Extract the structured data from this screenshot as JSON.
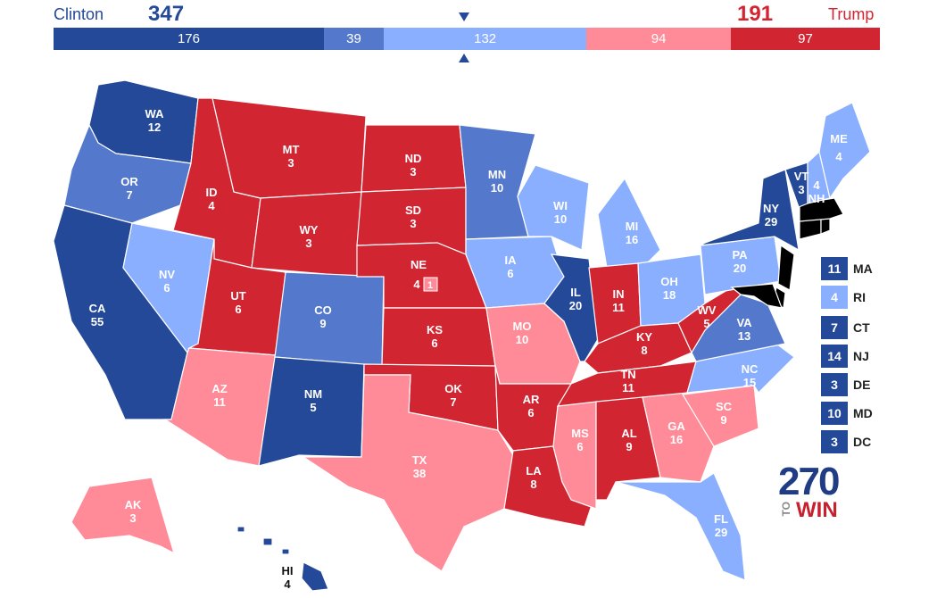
{
  "colors": {
    "safe_d": "#244999",
    "likely_d": "#5479cc",
    "lean_d": "#8aafff",
    "lean_r": "#ff8b98",
    "likely_r_unused": "",
    "safe_r": "#d22532"
  },
  "header": {
    "dem_name": "Clinton",
    "dem_total": "347",
    "rep_name": "Trump",
    "rep_total": "191"
  },
  "bar": [
    {
      "value": "176",
      "rating": "safe_d"
    },
    {
      "value": "39",
      "rating": "likely_d"
    },
    {
      "value": "132",
      "rating": "lean_d"
    },
    {
      "value": "94",
      "rating": "lean_r"
    },
    {
      "value": "97",
      "rating": "safe_r"
    }
  ],
  "states": {
    "WA": {
      "code": "WA",
      "ev": "12",
      "rating": "safe_d"
    },
    "OR": {
      "code": "OR",
      "ev": "7",
      "rating": "likely_d"
    },
    "CA": {
      "code": "CA",
      "ev": "55",
      "rating": "safe_d"
    },
    "NV": {
      "code": "NV",
      "ev": "6",
      "rating": "lean_d"
    },
    "ID": {
      "code": "ID",
      "ev": "4",
      "rating": "safe_r"
    },
    "MT": {
      "code": "MT",
      "ev": "3",
      "rating": "safe_r"
    },
    "WY": {
      "code": "WY",
      "ev": "3",
      "rating": "safe_r"
    },
    "UT": {
      "code": "UT",
      "ev": "6",
      "rating": "safe_r"
    },
    "AZ": {
      "code": "AZ",
      "ev": "11",
      "rating": "lean_r"
    },
    "CO": {
      "code": "CO",
      "ev": "9",
      "rating": "likely_d"
    },
    "NM": {
      "code": "NM",
      "ev": "5",
      "rating": "safe_d"
    },
    "ND": {
      "code": "ND",
      "ev": "3",
      "rating": "safe_r"
    },
    "SD": {
      "code": "SD",
      "ev": "3",
      "rating": "safe_r"
    },
    "NE": {
      "code": "NE",
      "ev": "4",
      "ne2": "1",
      "rating": "safe_r"
    },
    "KS": {
      "code": "KS",
      "ev": "6",
      "rating": "safe_r"
    },
    "OK": {
      "code": "OK",
      "ev": "7",
      "rating": "safe_r"
    },
    "TX": {
      "code": "TX",
      "ev": "38",
      "rating": "lean_r"
    },
    "MN": {
      "code": "MN",
      "ev": "10",
      "rating": "likely_d"
    },
    "IA": {
      "code": "IA",
      "ev": "6",
      "rating": "lean_d"
    },
    "MO": {
      "code": "MO",
      "ev": "10",
      "rating": "lean_r"
    },
    "AR": {
      "code": "AR",
      "ev": "6",
      "rating": "safe_r"
    },
    "LA": {
      "code": "LA",
      "ev": "8",
      "rating": "safe_r"
    },
    "WI": {
      "code": "WI",
      "ev": "10",
      "rating": "lean_d"
    },
    "IL": {
      "code": "IL",
      "ev": "20",
      "rating": "safe_d"
    },
    "MI": {
      "code": "MI",
      "ev": "16",
      "rating": "lean_d"
    },
    "IN": {
      "code": "IN",
      "ev": "11",
      "rating": "safe_r"
    },
    "OH": {
      "code": "OH",
      "ev": "18",
      "rating": "lean_d"
    },
    "KY": {
      "code": "KY",
      "ev": "8",
      "rating": "safe_r"
    },
    "TN": {
      "code": "TN",
      "ev": "11",
      "rating": "safe_r"
    },
    "MS": {
      "code": "MS",
      "ev": "6",
      "rating": "lean_r"
    },
    "AL": {
      "code": "AL",
      "ev": "9",
      "rating": "safe_r"
    },
    "GA": {
      "code": "GA",
      "ev": "16",
      "rating": "lean_r"
    },
    "FL": {
      "code": "FL",
      "ev": "29",
      "rating": "lean_d"
    },
    "SC": {
      "code": "SC",
      "ev": "9",
      "rating": "lean_r"
    },
    "NC": {
      "code": "NC",
      "ev": "15",
      "rating": "lean_d"
    },
    "VA": {
      "code": "VA",
      "ev": "13",
      "rating": "likely_d"
    },
    "WV": {
      "code": "WV",
      "ev": "5",
      "rating": "safe_r"
    },
    "PA": {
      "code": "PA",
      "ev": "20",
      "rating": "lean_d"
    },
    "NY": {
      "code": "NY",
      "ev": "29",
      "rating": "safe_d"
    },
    "VT": {
      "code": "VT",
      "ev": "3",
      "rating": "safe_d"
    },
    "NH": {
      "code": "NH",
      "ev": "4",
      "rating": "lean_d"
    },
    "ME": {
      "code": "ME",
      "ev": "4",
      "rating": "lean_d"
    },
    "AK": {
      "code": "AK",
      "ev": "3",
      "rating": "lean_r"
    },
    "HI": {
      "code": "HI",
      "ev": "4",
      "rating": "safe_d"
    }
  },
  "small_states": [
    {
      "code": "MA",
      "ev": "11",
      "rating": "safe_d"
    },
    {
      "code": "RI",
      "ev": "4",
      "rating": "lean_d"
    },
    {
      "code": "CT",
      "ev": "7",
      "rating": "safe_d"
    },
    {
      "code": "NJ",
      "ev": "14",
      "rating": "safe_d"
    },
    {
      "code": "DE",
      "ev": "3",
      "rating": "safe_d"
    },
    {
      "code": "MD",
      "ev": "10",
      "rating": "safe_d"
    },
    {
      "code": "DC",
      "ev": "3",
      "rating": "safe_d"
    }
  ],
  "logo": {
    "number": "270",
    "to": "TO",
    "win": "WIN"
  }
}
